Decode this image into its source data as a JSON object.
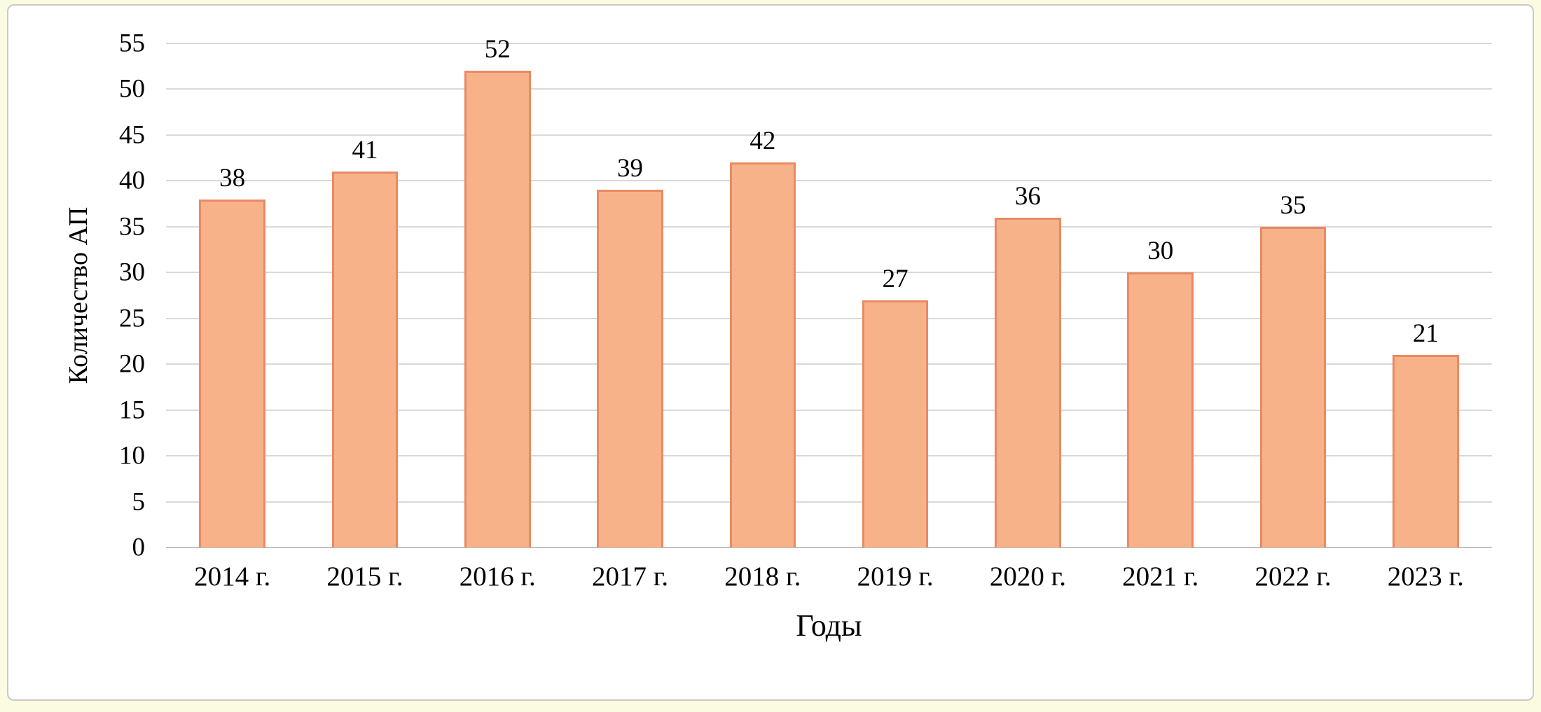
{
  "chart_data": {
    "type": "bar",
    "title": "",
    "categories": [
      "2014 г.",
      "2015 г.",
      "2016 г.",
      "2017 г.",
      "2018 г.",
      "2019 г.",
      "2020 г.",
      "2021 г.",
      "2022 г.",
      "2023 г."
    ],
    "values": [
      38,
      41,
      52,
      39,
      42,
      27,
      36,
      30,
      35,
      21
    ],
    "xlabel": "Годы",
    "ylabel": "Количество АП",
    "ylim": [
      0,
      55
    ],
    "ytick_step": 5,
    "grid": "horizontal",
    "legend": "none",
    "colors": {
      "bar_fill": "#f8b28a",
      "bar_border": "#e98a63",
      "gridline": "#d9d9d9",
      "axis_line": "#bfbfbf",
      "panel_border": "#c9c9c9",
      "page_background": "#fbfbe2",
      "text": "#000000"
    }
  }
}
